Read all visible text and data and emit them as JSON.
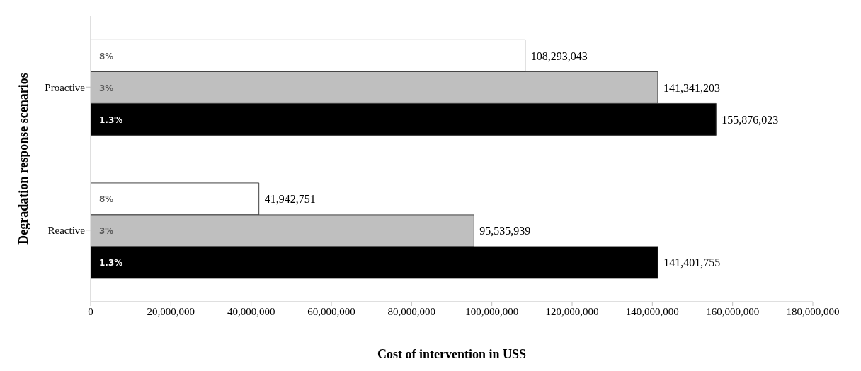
{
  "chart_data": {
    "type": "bar",
    "orientation": "horizontal",
    "xlabel": "Cost of intervention in USS",
    "ylabel": "Degradation response scenarios",
    "categories": [
      "Proactive",
      "Reactive"
    ],
    "series": [
      {
        "name": "8%",
        "color": "#ffffff",
        "values": [
          108293043,
          41942751
        ],
        "value_labels": [
          "108,293,043",
          "41,942,751"
        ]
      },
      {
        "name": "3%",
        "color": "#bfbfbf",
        "values": [
          141341203,
          95535939
        ],
        "value_labels": [
          "141,341,203",
          "95,535,939"
        ]
      },
      {
        "name": "1.3%",
        "color": "#000000",
        "values": [
          155876023,
          141401755
        ],
        "value_labels": [
          "155,876,023",
          "141,401,755"
        ]
      }
    ],
    "xlim": [
      0,
      180000000
    ],
    "xticks": [
      0,
      {
        "value": 20000000,
        "label": "20,000,000"
      },
      {
        "value": 40000000,
        "label": "40,000,000"
      },
      {
        "value": 60000000,
        "label": "60,000,000"
      },
      {
        "value": 80000000,
        "label": "80,000,000"
      },
      {
        "value": 100000000,
        "label": "100,000,000"
      },
      {
        "value": 120000000,
        "label": "120,000,000"
      },
      {
        "value": 140000000,
        "label": "140,000,000"
      },
      {
        "value": 160000000,
        "label": "160,000,000"
      },
      {
        "value": 180000000,
        "label": "180,000,000"
      }
    ],
    "grid": false,
    "legend": false
  }
}
